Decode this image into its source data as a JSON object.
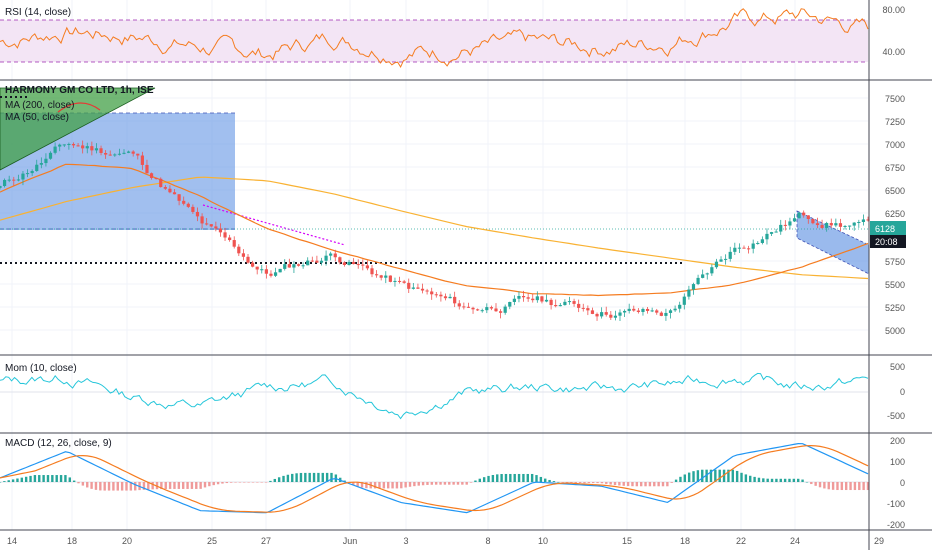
{
  "instrument": {
    "title": "HARMONY GM CO LTD, 1h, ISE",
    "last_price_label": "6128",
    "countdown_label": "20:08",
    "price_label_color": "#26a69a",
    "countdown_color": "#131722"
  },
  "colors": {
    "up_candle": "#26a69a",
    "down_candle": "#ef5350",
    "ma200": "#f9b233",
    "ma50": "#f57c20",
    "rsi_line": "#f57c20",
    "rsi_band": "#f3e5f5",
    "momentum": "#26c6da",
    "macd_line": "#2196f3",
    "signal_line": "#f57c20",
    "box_fill": "#6f9ce6",
    "triangle_fill": "#43a047"
  },
  "x_axis": {
    "ticks": [
      "14",
      "18",
      "20",
      "25",
      "27",
      "Jun",
      "3",
      "8",
      "10",
      "15",
      "18",
      "22",
      "24",
      "29"
    ]
  },
  "panes": {
    "rsi": {
      "label": "RSI (14, close)",
      "ticks": [
        "80.00",
        "40.00"
      ]
    },
    "price": {
      "ma200_label": "MA (200, close)",
      "ma50_label": "MA (50, close)",
      "ticks": [
        "7500",
        "7250",
        "7000",
        "6750",
        "6500",
        "6250",
        "5750",
        "5500",
        "5250",
        "5000"
      ]
    },
    "momentum": {
      "label": "Mom (10, close)",
      "ticks": [
        "500",
        "0",
        "-500"
      ]
    },
    "macd": {
      "label": "MACD (12, 26, close, 9)",
      "ticks": [
        "200",
        "100",
        "0",
        "-100",
        "-200"
      ]
    }
  },
  "chart_data": {
    "type": "line",
    "title": "HARMONY GM CO LTD, 1h, ISE",
    "x": [
      "14",
      "18",
      "20",
      "25",
      "27",
      "Jun",
      "3",
      "8",
      "10",
      "15",
      "18",
      "22",
      "24",
      "29"
    ],
    "series": [
      {
        "name": "HARMONY GM CO LTD",
        "values": [
          6550,
          7000,
          6900,
          6150,
          5620,
          5850,
          5500,
          5250,
          5350,
          5250,
          5200,
          5900,
          6250,
          6128
        ]
      },
      {
        "name": "MA (200, close)",
        "values": [
          6200,
          6400,
          6550,
          6660,
          6620,
          6480,
          6300,
          6130,
          6010,
          5900,
          5800,
          5700,
          5620,
          5580
        ]
      },
      {
        "name": "MA (50, close)",
        "values": [
          6500,
          6800,
          6750,
          6450,
          6100,
          5880,
          5680,
          5500,
          5420,
          5400,
          5430,
          5520,
          5700,
          5950
        ]
      },
      {
        "name": "RSI (14, close)",
        "values": [
          50,
          60,
          55,
          45,
          38,
          55,
          40,
          42,
          48,
          45,
          50,
          70,
          75,
          62
        ]
      },
      {
        "name": "Mom (10, close)",
        "values": [
          200,
          300,
          -100,
          -300,
          100,
          200,
          -400,
          0,
          100,
          50,
          150,
          300,
          100,
          250
        ]
      },
      {
        "name": "MACD (12, 26, close, 9)",
        "values": [
          20,
          150,
          -10,
          -140,
          -150,
          20,
          -100,
          -150,
          0,
          -20,
          -100,
          130,
          190,
          40
        ]
      }
    ],
    "ylim": [
      4900,
      7600
    ]
  }
}
